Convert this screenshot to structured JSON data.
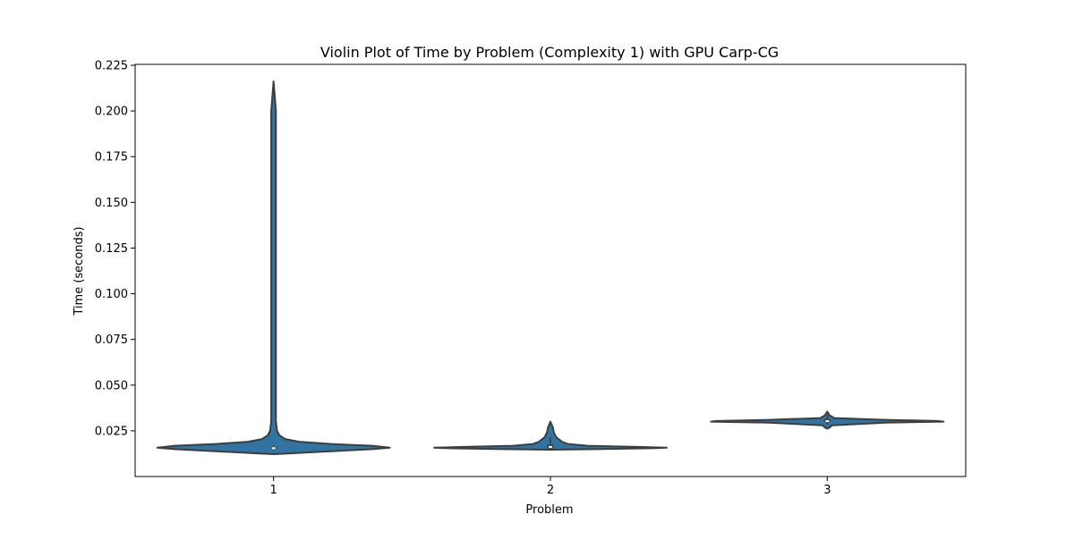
{
  "chart_data": {
    "type": "violin",
    "title": "Violin Plot of Time by Problem (Complexity 1) with GPU Carp-CG",
    "xlabel": "Problem",
    "ylabel": "Time (seconds)",
    "categories": [
      "1",
      "2",
      "3"
    ],
    "ylim": [
      0.0,
      0.2255
    ],
    "yticks": [
      0.025,
      0.05,
      0.075,
      0.1,
      0.125,
      0.15,
      0.175,
      0.2,
      0.225
    ],
    "ytick_labels": [
      "0.025",
      "0.050",
      "0.075",
      "0.100",
      "0.125",
      "0.150",
      "0.175",
      "0.200",
      "0.225"
    ],
    "grid": false,
    "legend": "none",
    "colors": {
      "violin_fill": "#3274a1",
      "outline": "#3d3d3d",
      "median": "#ffffff"
    },
    "violins": [
      {
        "category": "1",
        "min": 0.0122,
        "max": 0.2162,
        "q1": 0.0152,
        "median": 0.0155,
        "q3": 0.016,
        "whisker_low": 0.0145,
        "whisker_high": 0.0172,
        "density": [
          [
            0.0122,
            0.0
          ],
          [
            0.013,
            0.25
          ],
          [
            0.014,
            0.55
          ],
          [
            0.015,
            0.85
          ],
          [
            0.0158,
            1.0
          ],
          [
            0.0168,
            0.85
          ],
          [
            0.0178,
            0.5
          ],
          [
            0.019,
            0.22
          ],
          [
            0.0205,
            0.1
          ],
          [
            0.0225,
            0.05
          ],
          [
            0.025,
            0.03
          ],
          [
            0.03,
            0.02
          ],
          [
            0.05,
            0.02
          ],
          [
            0.1,
            0.02
          ],
          [
            0.2,
            0.02
          ],
          [
            0.2162,
            0.0
          ]
        ]
      },
      {
        "category": "2",
        "min": 0.0147,
        "max": 0.03,
        "q1": 0.0155,
        "median": 0.0162,
        "q3": 0.0175,
        "whisker_low": 0.0147,
        "whisker_high": 0.0215,
        "density": [
          [
            0.0147,
            0.0
          ],
          [
            0.015,
            0.4
          ],
          [
            0.0155,
            0.9
          ],
          [
            0.0158,
            1.0
          ],
          [
            0.0162,
            0.75
          ],
          [
            0.0168,
            0.32
          ],
          [
            0.0178,
            0.15
          ],
          [
            0.019,
            0.1
          ],
          [
            0.02,
            0.08
          ],
          [
            0.0215,
            0.05
          ],
          [
            0.024,
            0.03
          ],
          [
            0.027,
            0.02
          ],
          [
            0.03,
            0.0
          ]
        ]
      },
      {
        "category": "3",
        "min": 0.0262,
        "max": 0.0355,
        "q1": 0.0298,
        "median": 0.0303,
        "q3": 0.0315,
        "whisker_low": 0.0285,
        "whisker_high": 0.0335,
        "density": [
          [
            0.0262,
            0.0
          ],
          [
            0.0268,
            0.02
          ],
          [
            0.028,
            0.04
          ],
          [
            0.0295,
            0.5
          ],
          [
            0.03,
            1.0
          ],
          [
            0.0304,
            0.95
          ],
          [
            0.031,
            0.5
          ],
          [
            0.032,
            0.06
          ],
          [
            0.0335,
            0.02
          ],
          [
            0.0355,
            0.0
          ]
        ]
      }
    ]
  }
}
